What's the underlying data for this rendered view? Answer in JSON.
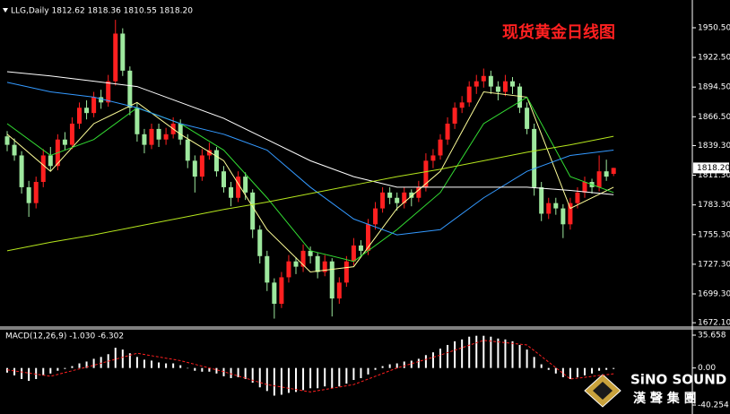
{
  "chart_data": [
    {
      "type": "candlestick",
      "header": "LLG,Daily 1812.62 1818.36 1810.55 1818.20",
      "title": "现货黄金日线图",
      "up_color": "#ff2020",
      "down_color": "#9ee89e",
      "candles": [
        [
          1848,
          1853,
          1834,
          1840
        ],
        [
          1840,
          1846,
          1825,
          1830
        ],
        [
          1830,
          1834,
          1794,
          1800
        ],
        [
          1800,
          1806,
          1772,
          1785
        ],
        [
          1785,
          1810,
          1780,
          1805
        ],
        [
          1805,
          1836,
          1800,
          1830
        ],
        [
          1830,
          1838,
          1815,
          1820
        ],
        [
          1820,
          1850,
          1816,
          1845
        ],
        [
          1845,
          1852,
          1835,
          1840
        ],
        [
          1840,
          1866,
          1836,
          1860
        ],
        [
          1860,
          1880,
          1855,
          1875
        ],
        [
          1875,
          1882,
          1864,
          1870
        ],
        [
          1870,
          1890,
          1866,
          1885
        ],
        [
          1885,
          1892,
          1874,
          1880
        ],
        [
          1880,
          1906,
          1876,
          1900
        ],
        [
          1900,
          1958,
          1896,
          1945
        ],
        [
          1945,
          1950,
          1905,
          1910
        ],
        [
          1910,
          1914,
          1868,
          1875
        ],
        [
          1875,
          1880,
          1843,
          1850
        ],
        [
          1850,
          1855,
          1832,
          1840
        ],
        [
          1840,
          1860,
          1836,
          1855
        ],
        [
          1855,
          1860,
          1838,
          1845
        ],
        [
          1845,
          1856,
          1840,
          1850
        ],
        [
          1850,
          1866,
          1846,
          1860
        ],
        [
          1860,
          1864,
          1840,
          1845
        ],
        [
          1845,
          1850,
          1818,
          1825
        ],
        [
          1825,
          1830,
          1795,
          1810
        ],
        [
          1810,
          1836,
          1806,
          1830
        ],
        [
          1830,
          1842,
          1826,
          1835
        ],
        [
          1835,
          1838,
          1810,
          1815
        ],
        [
          1815,
          1820,
          1795,
          1800
        ],
        [
          1800,
          1805,
          1782,
          1790
        ],
        [
          1790,
          1815,
          1786,
          1810
        ],
        [
          1810,
          1814,
          1788,
          1795
        ],
        [
          1795,
          1798,
          1752,
          1760
        ],
        [
          1760,
          1764,
          1728,
          1735
        ],
        [
          1735,
          1740,
          1702,
          1710
        ],
        [
          1710,
          1714,
          1676,
          1690
        ],
        [
          1690,
          1720,
          1686,
          1715
        ],
        [
          1715,
          1736,
          1710,
          1730
        ],
        [
          1730,
          1734,
          1718,
          1725
        ],
        [
          1725,
          1746,
          1720,
          1740
        ],
        [
          1740,
          1744,
          1728,
          1735
        ],
        [
          1735,
          1738,
          1714,
          1720
        ],
        [
          1720,
          1736,
          1716,
          1730
        ],
        [
          1730,
          1733,
          1678,
          1695
        ],
        [
          1695,
          1715,
          1690,
          1710
        ],
        [
          1710,
          1735,
          1706,
          1730
        ],
        [
          1730,
          1752,
          1726,
          1745
        ],
        [
          1745,
          1750,
          1734,
          1740
        ],
        [
          1740,
          1770,
          1736,
          1765
        ],
        [
          1765,
          1786,
          1760,
          1780
        ],
        [
          1780,
          1800,
          1776,
          1795
        ],
        [
          1795,
          1800,
          1784,
          1790
        ],
        [
          1790,
          1795,
          1778,
          1785
        ],
        [
          1785,
          1800,
          1780,
          1795
        ],
        [
          1795,
          1798,
          1782,
          1790
        ],
        [
          1790,
          1806,
          1786,
          1800
        ],
        [
          1800,
          1832,
          1796,
          1825
        ],
        [
          1825,
          1836,
          1818,
          1830
        ],
        [
          1830,
          1850,
          1826,
          1845
        ],
        [
          1845,
          1866,
          1840,
          1860
        ],
        [
          1860,
          1880,
          1855,
          1875
        ],
        [
          1875,
          1886,
          1870,
          1880
        ],
        [
          1880,
          1900,
          1876,
          1895
        ],
        [
          1895,
          1906,
          1888,
          1900
        ],
        [
          1900,
          1912,
          1894,
          1905
        ],
        [
          1905,
          1910,
          1888,
          1895
        ],
        [
          1895,
          1900,
          1882,
          1890
        ],
        [
          1890,
          1906,
          1886,
          1900
        ],
        [
          1900,
          1904,
          1888,
          1895
        ],
        [
          1895,
          1898,
          1870,
          1875
        ],
        [
          1875,
          1880,
          1850,
          1855
        ],
        [
          1855,
          1860,
          1792,
          1800
        ],
        [
          1800,
          1805,
          1768,
          1775
        ],
        [
          1775,
          1790,
          1770,
          1785
        ],
        [
          1785,
          1790,
          1774,
          1780
        ],
        [
          1780,
          1784,
          1752,
          1765
        ],
        [
          1765,
          1790,
          1760,
          1785
        ],
        [
          1785,
          1800,
          1780,
          1795
        ],
        [
          1795,
          1810,
          1790,
          1805
        ],
        [
          1805,
          1808,
          1794,
          1800
        ],
        [
          1800,
          1830,
          1796,
          1815
        ],
        [
          1815,
          1826,
          1806,
          1810
        ],
        [
          1812.62,
          1818.36,
          1810.55,
          1818.2
        ]
      ],
      "ma_x": [
        0,
        6,
        12,
        18,
        24,
        30,
        36,
        42,
        48,
        54,
        60,
        66,
        72,
        78,
        84
      ],
      "ma_series": [
        {
          "color": "#ffff99",
          "values": [
            1850,
            1815,
            1860,
            1880,
            1850,
            1825,
            1760,
            1720,
            1725,
            1780,
            1815,
            1890,
            1885,
            1780,
            1800
          ]
        },
        {
          "color": "#33dd33",
          "values": [
            1860,
            1830,
            1845,
            1875,
            1860,
            1835,
            1790,
            1740,
            1730,
            1760,
            1795,
            1860,
            1885,
            1810,
            1795
          ]
        },
        {
          "color": "#3399ff",
          "values": [
            1899,
            1890,
            1885,
            1875,
            1860,
            1850,
            1835,
            1800,
            1770,
            1755,
            1760,
            1790,
            1815,
            1830,
            1835
          ]
        },
        {
          "color": "#ffffff",
          "values": [
            1909,
            1905,
            1900,
            1895,
            1880,
            1865,
            1845,
            1825,
            1810,
            1800,
            1800,
            1800,
            1800,
            1797,
            1793
          ]
        },
        {
          "color": "#b5e61d",
          "values": [
            1740,
            1748,
            1755,
            1763,
            1771,
            1779,
            1786,
            1794,
            1802,
            1810,
            1817,
            1825,
            1833,
            1840,
            1848
          ]
        }
      ],
      "ylim": [
        1668,
        1975
      ],
      "yticks": [
        {
          "value": 1950.5,
          "label": "1950.50"
        },
        {
          "value": 1922.5,
          "label": "1922.50"
        },
        {
          "value": 1894.5,
          "label": "1894.50"
        },
        {
          "value": 1866.5,
          "label": "1866.50"
        },
        {
          "value": 1839.3,
          "label": "1839.30"
        },
        {
          "value": 1811.3,
          "label": "1811.30"
        },
        {
          "value": 1783.3,
          "label": "1783.30"
        },
        {
          "value": 1755.3,
          "label": "1755.30"
        },
        {
          "value": 1727.3,
          "label": "1727.30"
        },
        {
          "value": 1699.3,
          "label": "1699.30"
        },
        {
          "value": 1672.1,
          "label": "1672.10"
        }
      ],
      "last_price": {
        "value": 1818.2,
        "label": "1818.20"
      }
    },
    {
      "type": "macd",
      "label": "MACD(12,26,9) -1.030 -6.302",
      "hist_color": "#ffffff",
      "histogram": [
        -5,
        -8,
        -12,
        -14,
        -12,
        -8,
        -6,
        -3,
        -1,
        2,
        5,
        7,
        10,
        12,
        15,
        22,
        20,
        16,
        12,
        9,
        8,
        6,
        5,
        5,
        3,
        0,
        -3,
        -4,
        -4,
        -6,
        -9,
        -11,
        -10,
        -12,
        -16,
        -21,
        -25,
        -30,
        -29,
        -27,
        -26,
        -24,
        -22,
        -22,
        -20,
        -22,
        -20,
        -17,
        -13,
        -11,
        -7,
        -2,
        2,
        4,
        5,
        7,
        8,
        10,
        14,
        17,
        21,
        25,
        29,
        31,
        34,
        35,
        35,
        34,
        32,
        31,
        29,
        25,
        20,
        12,
        4,
        -2,
        -6,
        -10,
        -12,
        -10,
        -8,
        -6,
        -3,
        -2,
        -1.03
      ],
      "signal_x": [
        0,
        6,
        12,
        18,
        24,
        30,
        36,
        42,
        48,
        54,
        60,
        66,
        72,
        78,
        84
      ],
      "signal": [
        -2,
        -9,
        3,
        16,
        8,
        -4,
        -18,
        -26,
        -18,
        0,
        14,
        30,
        25,
        -12,
        -6.302
      ],
      "signal_color": "#ff2020",
      "ylim": [
        -48,
        41.5
      ],
      "yticks": [
        35.658,
        {
          "value": 0,
          "label": "0.00"
        },
        -40.254
      ]
    }
  ],
  "watermark": {
    "brand": "SiNO SOUND",
    "sub": "漢 聲 集 團"
  }
}
